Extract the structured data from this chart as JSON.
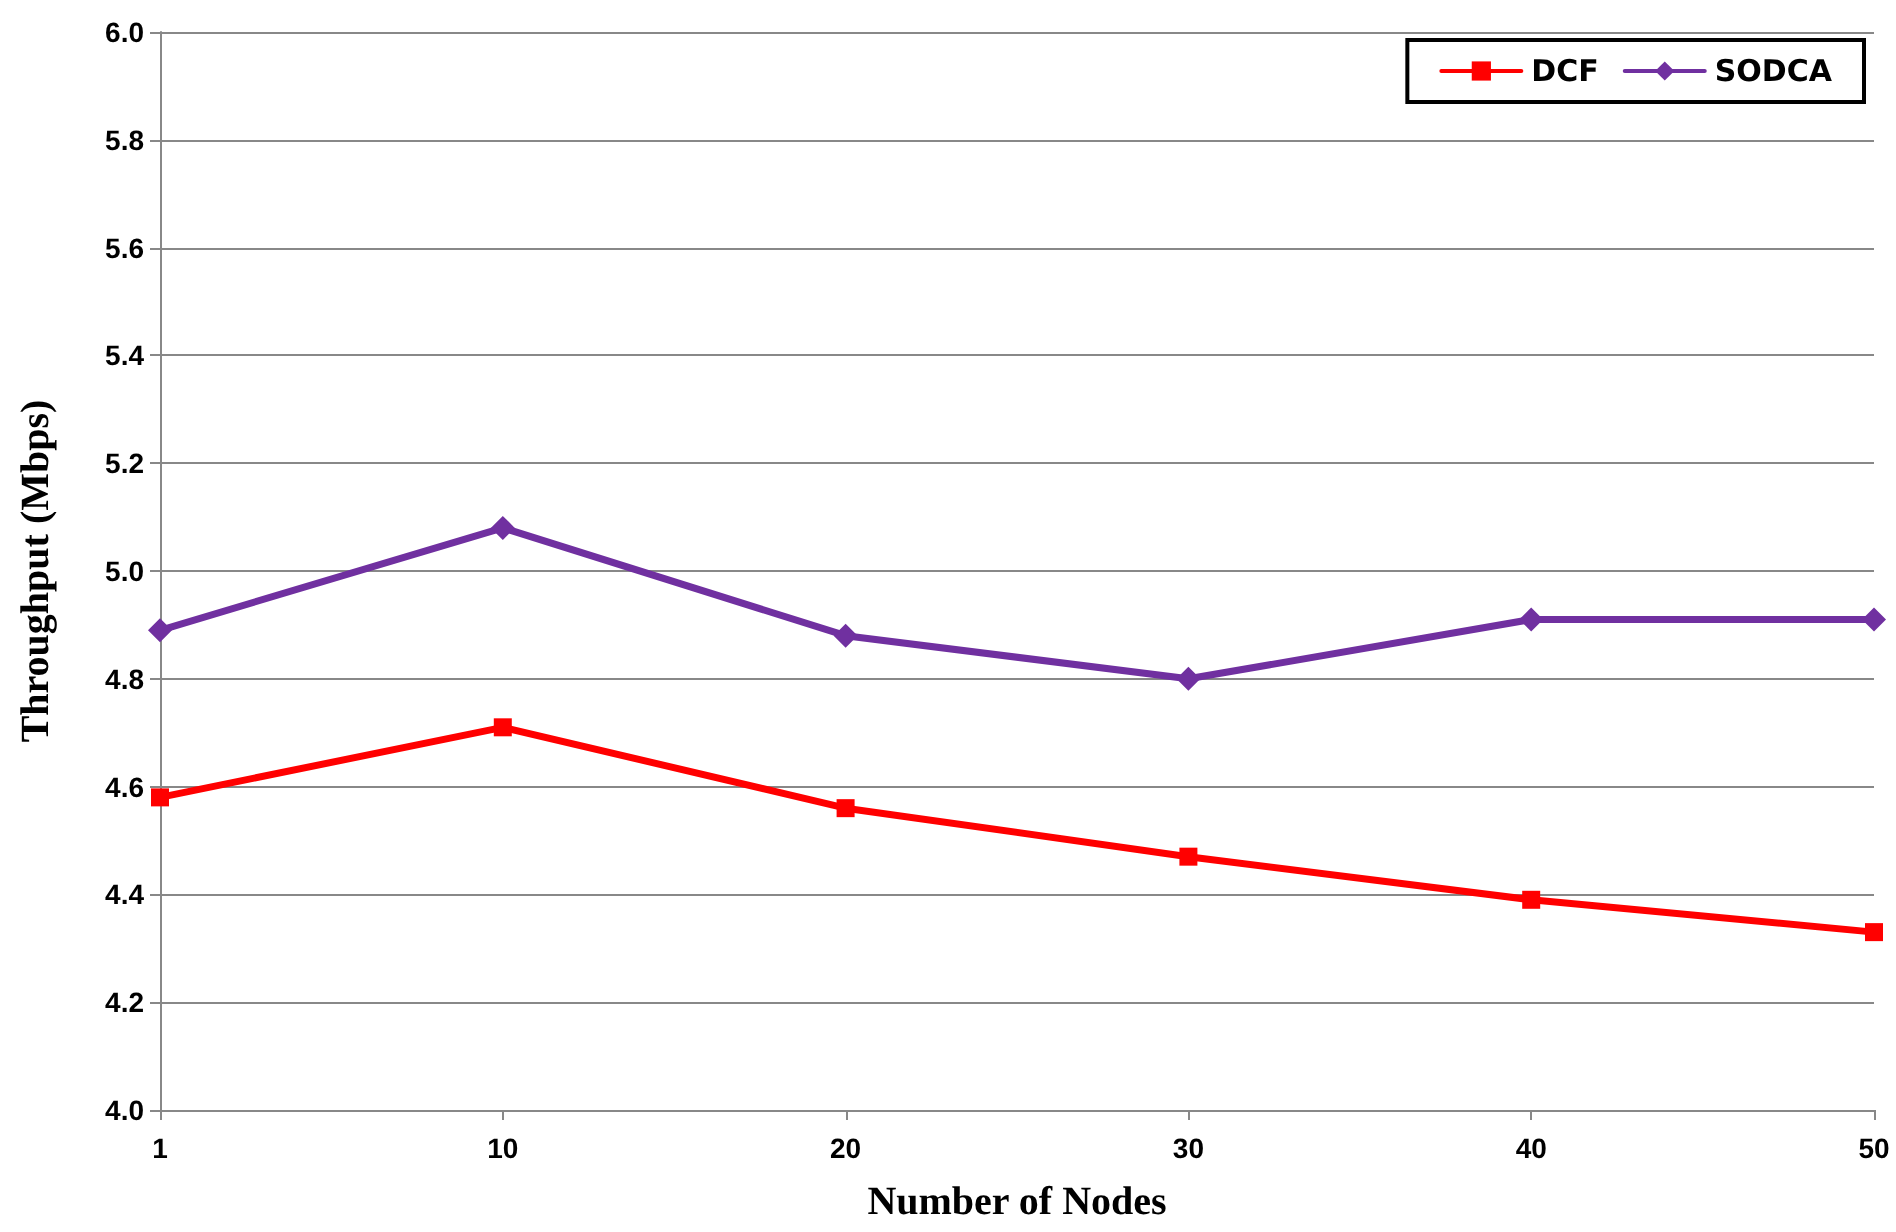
{
  "chart_data": {
    "type": "line",
    "xlabel": "Number of Nodes",
    "ylabel": "Throughput (Mbps)",
    "categories": [
      "1",
      "10",
      "20",
      "30",
      "40",
      "50"
    ],
    "series": [
      {
        "name": "DCF",
        "color": "#ff0000",
        "marker": "square",
        "values": [
          4.58,
          4.71,
          4.56,
          4.47,
          4.39,
          4.33
        ]
      },
      {
        "name": "SODCA",
        "color": "#7030a0",
        "marker": "diamond",
        "values": [
          4.89,
          5.08,
          4.88,
          4.8,
          4.91,
          4.91
        ]
      }
    ],
    "ylim": [
      4.0,
      6.0
    ],
    "yticks": [
      {
        "value": 4.0,
        "label": "4.0"
      },
      {
        "value": 4.2,
        "label": "4.2"
      },
      {
        "value": 4.4,
        "label": "4.4"
      },
      {
        "value": 4.6,
        "label": "4.6"
      },
      {
        "value": 4.8,
        "label": "4.8"
      },
      {
        "value": 5.0,
        "label": "5.0"
      },
      {
        "value": 5.2,
        "label": "5.2"
      },
      {
        "value": 5.4,
        "label": "5.4"
      },
      {
        "value": 5.6,
        "label": "5.6"
      },
      {
        "value": 5.8,
        "label": "5.8"
      },
      {
        "value": 6.0,
        "label": "6.0"
      }
    ],
    "grid": "y",
    "legend": "top right",
    "line_style": "solid"
  }
}
